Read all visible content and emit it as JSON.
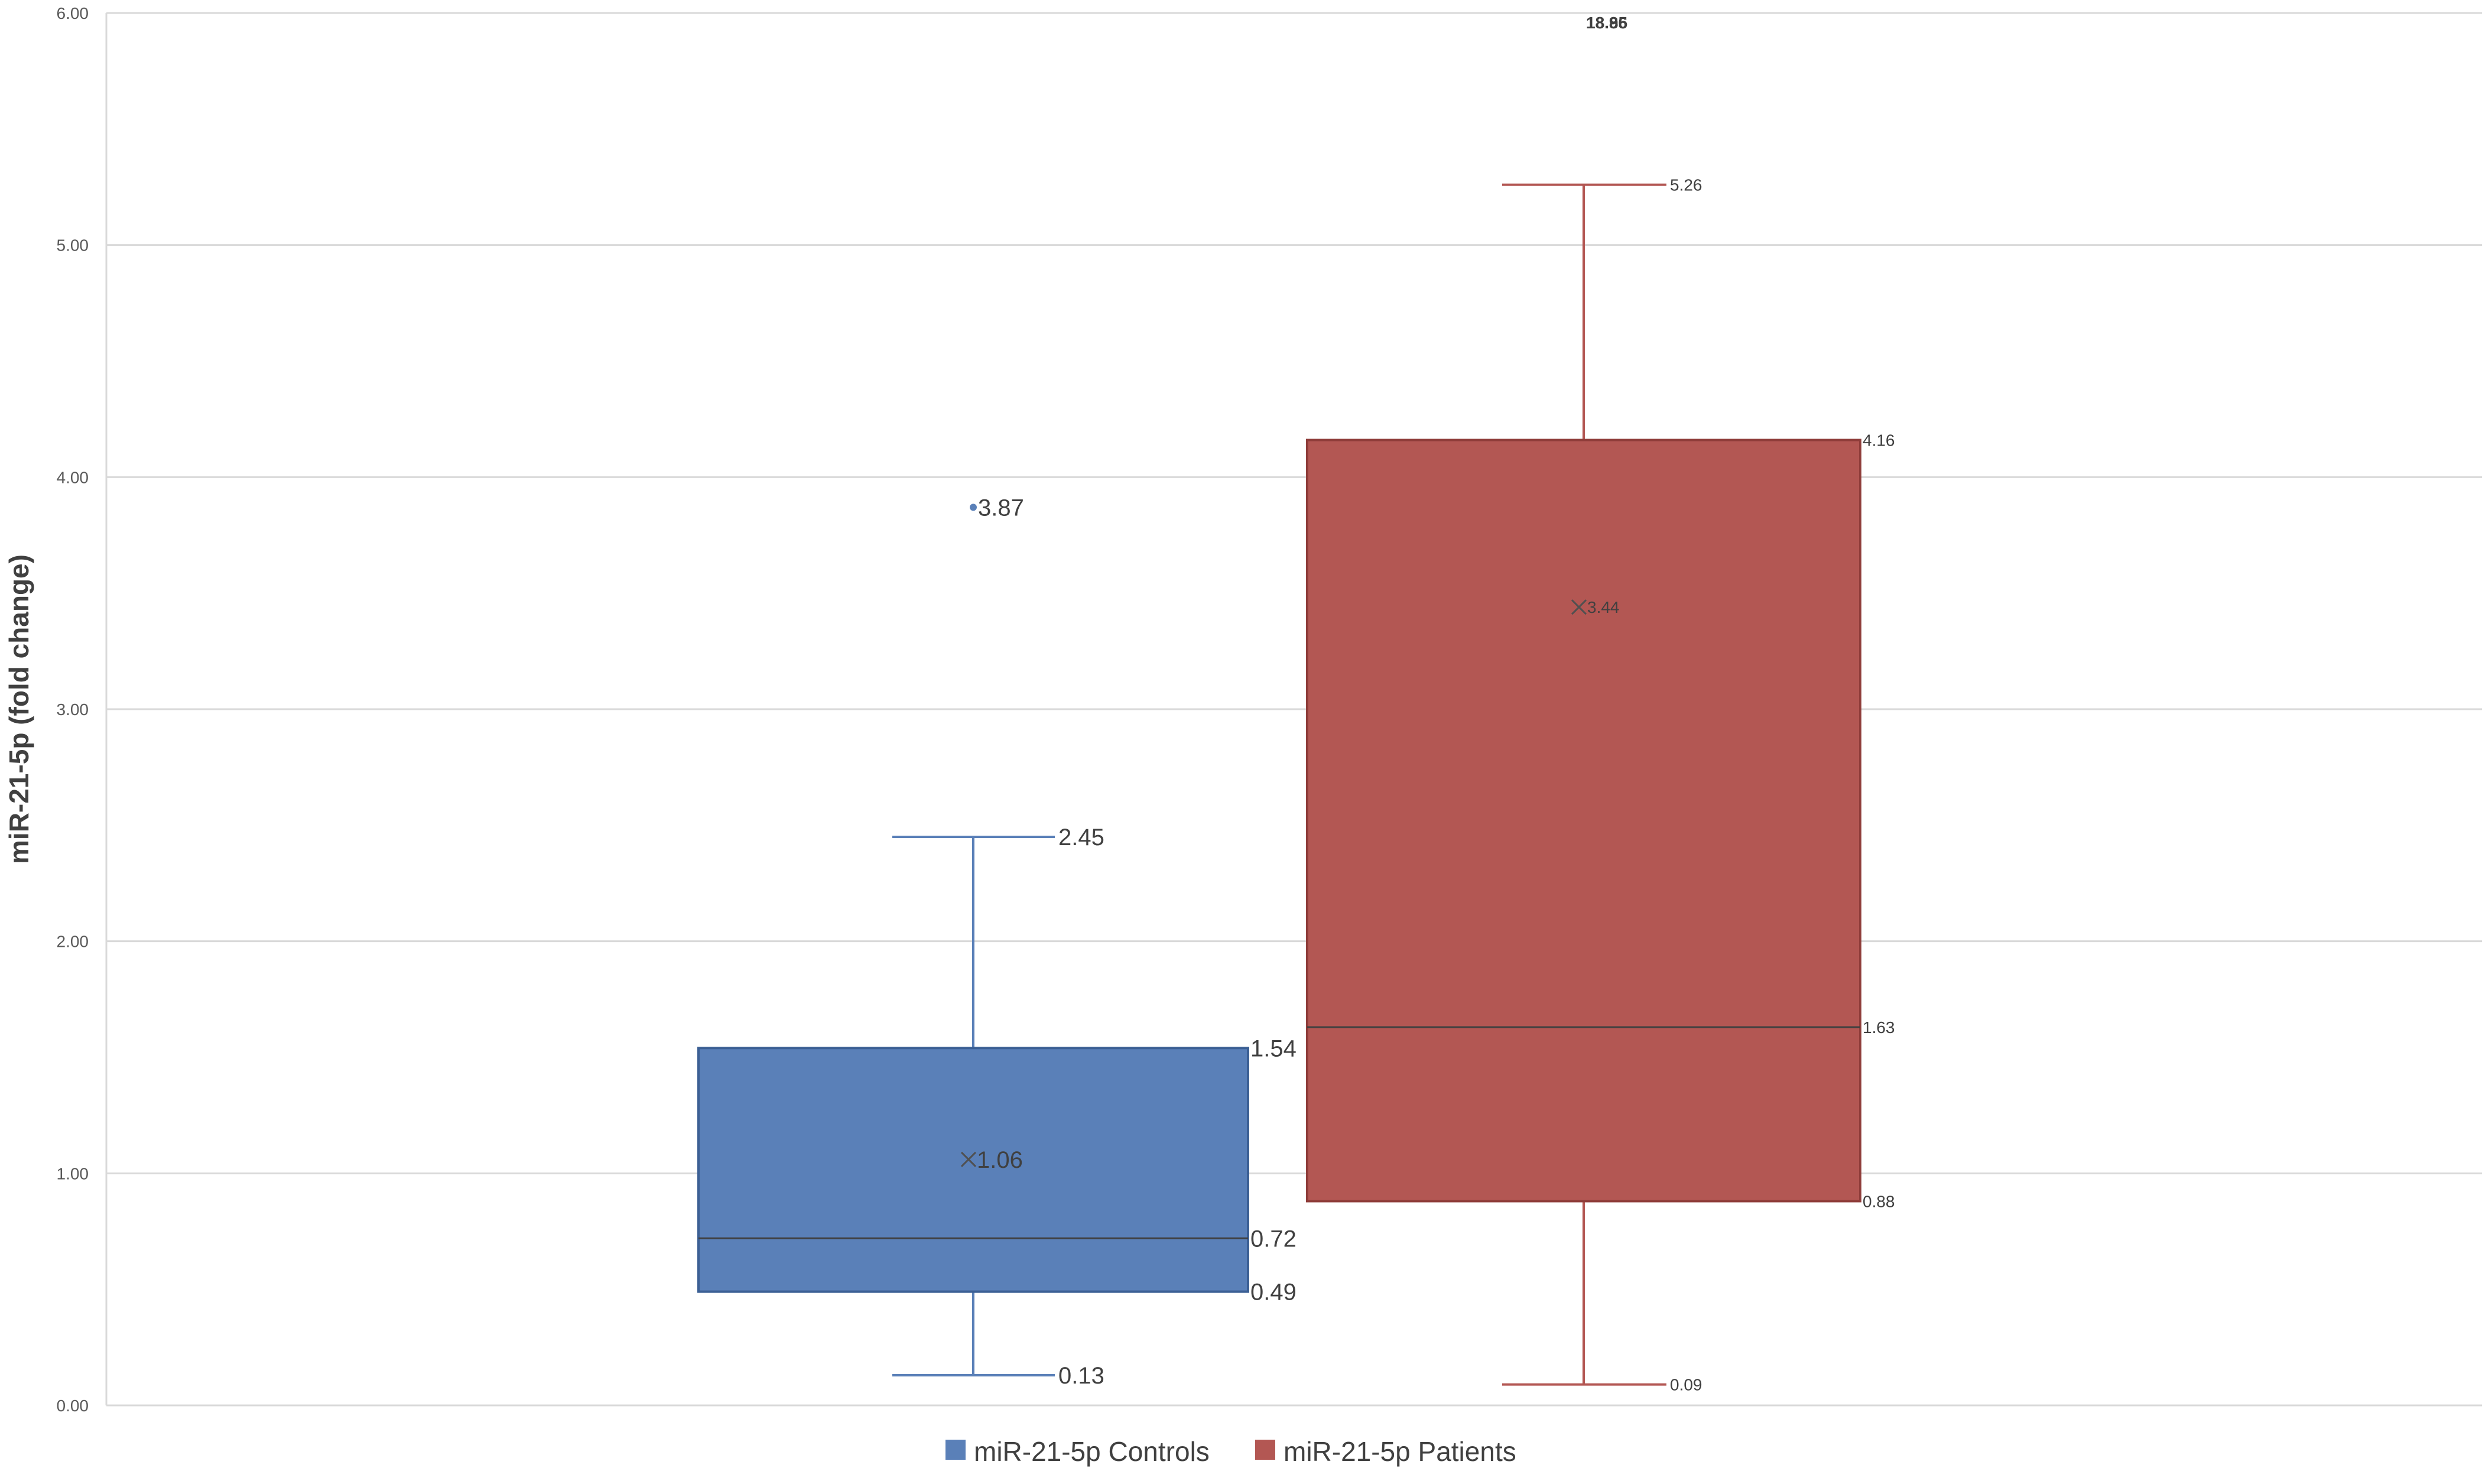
{
  "chart_data": {
    "type": "box",
    "ylabel": "miR-21-5p (fold change)",
    "ylim": [
      0,
      6
    ],
    "yticks": [
      "0.00",
      "1.00",
      "2.00",
      "3.00",
      "4.00",
      "5.00",
      "6.00"
    ],
    "grid": true,
    "legend_position": "bottom",
    "series": [
      {
        "name": "miR-21-5p Controls",
        "color": "#5a80b8",
        "min": 0.13,
        "q1": 0.49,
        "median": 0.72,
        "q3": 1.54,
        "max": 2.45,
        "mean": 1.06,
        "outliers": [
          3.87
        ],
        "labels": {
          "min": "0.13",
          "q1": "0.49",
          "median": "0.72",
          "q3": "1.54",
          "max": "2.45",
          "mean": "1.06",
          "outliers": [
            "3.87"
          ]
        }
      },
      {
        "name": "miR-21-5p Patients",
        "color": "#b35753",
        "min": 0.09,
        "q1": 0.88,
        "median": 1.63,
        "q3": 4.16,
        "max": 5.26,
        "mean": 3.44,
        "outliers": [
          18.86,
          18.95
        ],
        "labels": {
          "min": "0.09",
          "q1": "0.88",
          "median": "1.63",
          "q3": "4.16",
          "max": "5.26",
          "mean": "3.44",
          "outliers": [
            "18.86",
            "18.95"
          ]
        }
      }
    ]
  }
}
